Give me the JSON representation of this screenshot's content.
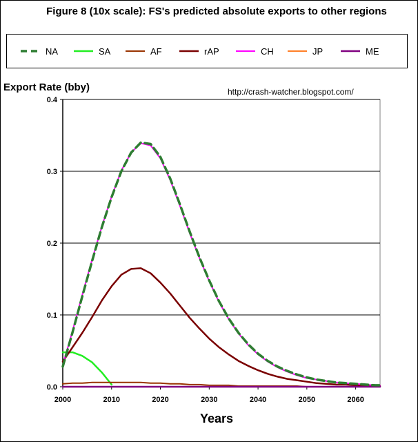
{
  "chart_data": {
    "type": "line",
    "title": "Figure 8 (10x scale): FS's predicted absolute exports to other regions",
    "ylabel": "Export Rate (bby)",
    "xlabel": "Years",
    "annotation": "http://crash-watcher.blogspot.com/",
    "xlim": [
      2000,
      2065
    ],
    "ylim": [
      0,
      0.4
    ],
    "xticks": [
      "2000",
      "2010",
      "2020",
      "2030",
      "2040",
      "2050",
      "2060"
    ],
    "yticks": [
      "0.0",
      "0.1",
      "0.2",
      "0.3",
      "0.4"
    ],
    "grid": "horizontal",
    "legend_position": "top",
    "x": [
      2000,
      2002,
      2004,
      2006,
      2008,
      2010,
      2012,
      2014,
      2016,
      2018,
      2020,
      2022,
      2024,
      2026,
      2028,
      2030,
      2032,
      2034,
      2036,
      2038,
      2040,
      2042,
      2044,
      2046,
      2048,
      2050,
      2052,
      2054,
      2056,
      2058,
      2060,
      2062,
      2064,
      2065
    ],
    "series": [
      {
        "name": "NA",
        "color": "#2e7d32",
        "dash": "10,6",
        "width": 3.5,
        "values": [
          0.028,
          0.076,
          0.126,
          0.175,
          0.222,
          0.264,
          0.3,
          0.326,
          0.34,
          0.338,
          0.32,
          0.29,
          0.254,
          0.216,
          0.18,
          0.148,
          0.119,
          0.095,
          0.075,
          0.059,
          0.046,
          0.036,
          0.028,
          0.022,
          0.017,
          0.013,
          0.01,
          0.008,
          0.006,
          0.005,
          0.004,
          0.003,
          0.002,
          0.002
        ]
      },
      {
        "name": "SA",
        "color": "#22ee22",
        "width": 2.5,
        "values": [
          0.048,
          0.048,
          0.043,
          0.034,
          0.02,
          0.003,
          null,
          null,
          null,
          null,
          null,
          null,
          null,
          null,
          null,
          null,
          null,
          null,
          null,
          null,
          null,
          null,
          null,
          null,
          null,
          null,
          null,
          null,
          null,
          null,
          null,
          null,
          null,
          null
        ]
      },
      {
        "name": "AF",
        "color": "#993300",
        "width": 2,
        "values": [
          0.004,
          0.005,
          0.005,
          0.006,
          0.006,
          0.006,
          0.006,
          0.006,
          0.006,
          0.005,
          0.005,
          0.004,
          0.004,
          0.003,
          0.003,
          0.002,
          0.002,
          0.002,
          0.001,
          0.001,
          0.001,
          0.001,
          0.001,
          0.001,
          0.001,
          0.0,
          0.0,
          0.0,
          0.0,
          0.0,
          0.0,
          0.0,
          0.0,
          0.0
        ]
      },
      {
        "name": "rAP",
        "color": "#7a0000",
        "width": 2.5,
        "values": [
          0.035,
          0.055,
          0.075,
          0.097,
          0.12,
          0.14,
          0.156,
          0.164,
          0.165,
          0.158,
          0.145,
          0.13,
          0.113,
          0.096,
          0.081,
          0.067,
          0.055,
          0.045,
          0.036,
          0.029,
          0.023,
          0.018,
          0.014,
          0.011,
          0.009,
          0.007,
          0.005,
          0.004,
          0.003,
          0.003,
          0.002,
          0.002,
          0.001,
          0.001
        ]
      },
      {
        "name": "CH",
        "color": "#ff00ff",
        "width": 2,
        "values": [
          0.03,
          0.078,
          0.128,
          0.177,
          0.223,
          0.265,
          0.301,
          0.326,
          0.339,
          0.336,
          0.318,
          0.288,
          0.252,
          0.214,
          0.179,
          0.147,
          0.118,
          0.094,
          0.074,
          0.058,
          0.045,
          0.035,
          0.027,
          0.021,
          0.016,
          0.012,
          0.01,
          0.008,
          0.006,
          0.005,
          0.004,
          0.003,
          0.002,
          0.002
        ]
      },
      {
        "name": "JP",
        "color": "#ff7f27",
        "width": 2,
        "values": [
          0.0,
          0.0,
          0.0,
          0.0,
          0.0,
          0.0,
          0.0,
          0.0,
          0.0,
          0.0,
          0.0,
          0.0,
          0.0,
          0.0,
          0.0,
          0.0,
          0.0,
          0.0,
          0.0,
          0.0,
          0.0,
          0.0,
          0.0,
          0.0,
          0.0,
          0.0,
          0.0,
          0.0,
          0.0,
          0.0,
          0.0,
          0.0,
          0.0,
          0.0
        ]
      },
      {
        "name": "ME",
        "color": "#800080",
        "width": 2.5,
        "values": [
          0.0,
          0.0,
          0.0,
          0.0,
          0.0,
          0.0,
          0.0,
          0.0,
          0.0,
          0.0,
          0.0,
          0.0,
          0.0,
          0.0,
          0.0,
          0.0,
          0.0,
          0.0,
          0.0,
          0.0,
          0.0,
          0.0,
          0.0,
          0.0,
          0.0,
          0.0,
          0.0,
          0.0,
          0.0,
          0.0,
          0.0,
          0.0,
          0.0,
          0.0
        ]
      }
    ]
  }
}
